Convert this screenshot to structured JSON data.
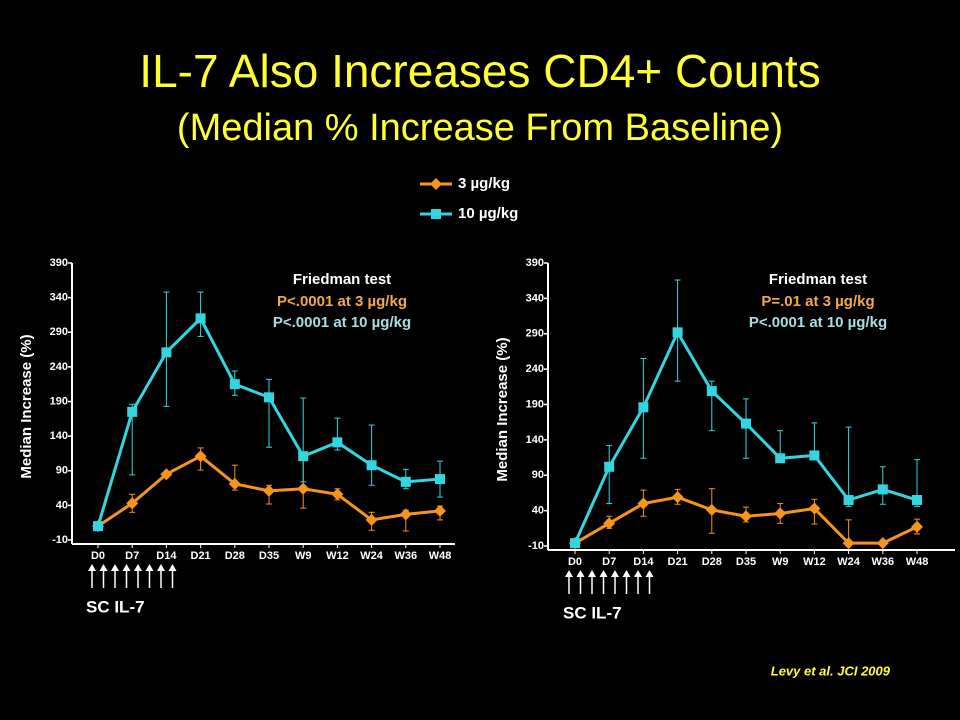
{
  "title": "IL-7 Also Increases CD4+ Counts",
  "subtitle": "(Median % Increase From Baseline)",
  "citation": "Levy et al. JCI 2009",
  "chart_data": [
    {
      "type": "line",
      "ylabel": "Median Increase (%)",
      "categories": [
        "D0",
        "D7",
        "D14",
        "D21",
        "D28",
        "D35",
        "W9",
        "W12",
        "W24",
        "W36",
        "W48"
      ],
      "ylim": [
        -10,
        390
      ],
      "yticks": [
        -10,
        40,
        90,
        140,
        190,
        240,
        290,
        340,
        390
      ],
      "series": [
        {
          "name": "3 µg/kg",
          "color": "#f7941d",
          "marker": "diamond",
          "values": [
            10,
            43,
            85,
            111,
            71,
            61,
            64,
            56,
            19,
            27,
            32
          ],
          "lower": [
            null,
            30,
            null,
            91,
            62,
            42,
            36,
            48,
            4,
            3,
            19
          ],
          "upper": [
            null,
            56,
            null,
            123,
            98,
            69,
            107,
            64,
            30,
            33,
            39
          ]
        },
        {
          "name": "10 µg/kg",
          "color": "#33d6e0",
          "marker": "square",
          "values": [
            10,
            175,
            261,
            310,
            215,
            196,
            111,
            131,
            98,
            74,
            78
          ],
          "lower": [
            null,
            84,
            183,
            284,
            199,
            124,
            74,
            120,
            69,
            64,
            52
          ],
          "upper": [
            null,
            186,
            348,
            348,
            234,
            222,
            195,
            166,
            156,
            92,
            104
          ]
        }
      ],
      "annotation_title": "Friedman test",
      "annotations": [
        {
          "text": "P<.0001 at 3 µg/kg",
          "color": "#f7a650"
        },
        {
          "text": "P<.0001 at 10 µg/kg",
          "color": "#a8dde3"
        }
      ],
      "dosing_label": "SC IL-7"
    },
    {
      "type": "line",
      "ylabel": "Median Increase (%)",
      "categories": [
        "D0",
        "D7",
        "D14",
        "D21",
        "D28",
        "D35",
        "W9",
        "W12",
        "W24",
        "W36",
        "W48"
      ],
      "ylim": [
        -10,
        390
      ],
      "yticks": [
        -10,
        40,
        90,
        140,
        190,
        240,
        290,
        340,
        390
      ],
      "series": [
        {
          "name": "3 µg/kg",
          "color": "#f7941d",
          "marker": "diamond",
          "values": [
            -6,
            22,
            50,
            59,
            41,
            32,
            36,
            43,
            -6,
            -6,
            17
          ],
          "lower": [
            null,
            15,
            32,
            49,
            8,
            24,
            22,
            21,
            null,
            null,
            7
          ],
          "upper": [
            null,
            32,
            69,
            70,
            71,
            45,
            50,
            56,
            27,
            null,
            28
          ]
        },
        {
          "name": "10 µg/kg",
          "color": "#33d6e0",
          "marker": "square",
          "values": [
            -6,
            102,
            186,
            292,
            209,
            163,
            114,
            118,
            55,
            70,
            55
          ],
          "lower": [
            null,
            50,
            114,
            223,
            153,
            114,
            109,
            114,
            46,
            49,
            46
          ],
          "upper": [
            null,
            132,
            255,
            366,
            223,
            198,
            153,
            164,
            158,
            102,
            112
          ]
        }
      ],
      "annotation_title": "Friedman test",
      "annotations": [
        {
          "text": "P=.01 at 3 µg/kg",
          "color": "#f7a650"
        },
        {
          "text": "P<.0001 at 10 µg/kg",
          "color": "#a8dde3"
        }
      ],
      "dosing_label": "SC IL-7"
    }
  ]
}
